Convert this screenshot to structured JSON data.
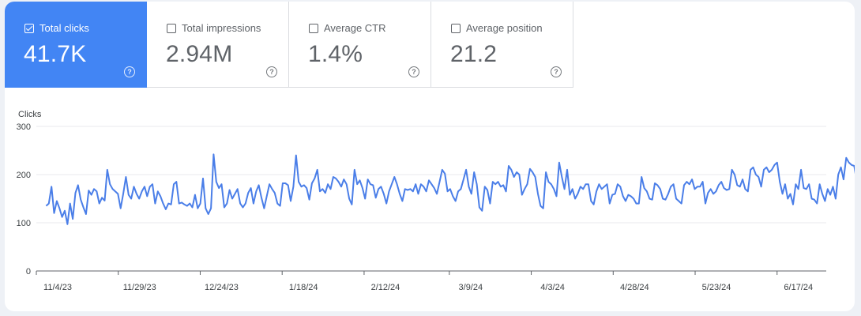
{
  "metrics": [
    {
      "label": "Total clicks",
      "value": "41.7K",
      "selected": true
    },
    {
      "label": "Total impressions",
      "value": "2.94M",
      "selected": false
    },
    {
      "label": "Average CTR",
      "value": "1.4%",
      "selected": false
    },
    {
      "label": "Average position",
      "value": "21.2",
      "selected": false
    }
  ],
  "help_glyph": "?",
  "colors": {
    "accent": "#4285f4",
    "line": "#4a7ee8",
    "grid": "#e8eaed"
  },
  "chart_data": {
    "type": "line",
    "ylabel": "Clicks",
    "ylim": [
      0,
      300
    ],
    "yticks": [
      0,
      100,
      200,
      300
    ],
    "x_start": "2023-11-04",
    "x_end": "2024-07-02",
    "xticks": [
      "11/4/23",
      "11/29/23",
      "12/24/23",
      "1/18/24",
      "2/12/24",
      "3/9/24",
      "4/3/24",
      "4/28/24",
      "5/23/24",
      "6/17/24"
    ],
    "grid": true,
    "series": [
      {
        "name": "",
        "values": [
          135,
          140,
          175,
          120,
          145,
          130,
          112,
          125,
          97,
          140,
          108,
          162,
          178,
          148,
          132,
          118,
          167,
          158,
          170,
          165,
          140,
          152,
          146,
          210,
          180,
          170,
          165,
          160,
          130,
          160,
          195,
          158,
          150,
          175,
          160,
          150,
          165,
          175,
          155,
          175,
          180,
          140,
          165,
          155,
          140,
          128,
          140,
          138,
          180,
          185,
          140,
          142,
          138,
          135,
          140,
          132,
          158,
          130,
          140,
          192,
          130,
          118,
          130,
          242,
          185,
          172,
          180,
          132,
          140,
          168,
          150,
          160,
          170,
          140,
          132,
          140,
          162,
          172,
          140,
          165,
          178,
          152,
          130,
          155,
          180,
          170,
          162,
          140,
          135,
          182,
          182,
          178,
          145,
          175,
          240,
          185,
          175,
          178,
          172,
          148,
          182,
          192,
          210,
          165,
          170,
          162,
          180,
          170,
          195,
          192,
          185,
          175,
          190,
          180,
          150,
          138,
          210,
          180,
          188,
          172,
          150,
          190,
          180,
          178,
          152,
          170,
          175,
          160,
          140,
          165,
          180,
          195,
          180,
          160,
          145,
          170,
          168,
          170,
          165,
          180,
          160,
          180,
          175,
          165,
          188,
          180,
          172,
          160,
          185,
          210,
          202,
          165,
          170,
          155,
          145,
          165,
          170,
          190,
          210,
          175,
          160,
          205,
          180,
          132,
          125,
          175,
          168,
          140,
          185,
          180,
          185,
          175,
          178,
          165,
          218,
          210,
          195,
          205,
          200,
          158,
          170,
          180,
          212,
          205,
          195,
          160,
          135,
          130,
          205,
          185,
          180,
          170,
          155,
          225,
          195,
          170,
          210,
          158,
          170,
          150,
          160,
          175,
          170,
          180,
          180,
          145,
          138,
          165,
          180,
          170,
          175,
          180,
          140,
          158,
          160,
          180,
          175,
          155,
          145,
          158,
          155,
          150,
          140,
          140,
          195,
          172,
          165,
          150,
          148,
          182,
          178,
          170,
          150,
          148,
          160,
          175,
          180,
          150,
          145,
          140,
          178,
          185,
          180,
          190,
          170,
          175,
          175,
          185,
          140,
          162,
          170,
          160,
          165,
          178,
          185,
          172,
          168,
          170,
          210,
          200,
          178,
          175,
          190,
          170,
          165,
          210,
          215,
          200,
          195,
          175,
          210,
          215,
          205,
          210,
          220,
          225,
          185,
          160,
          180,
          150,
          160,
          138,
          180,
          170,
          210,
          172,
          170,
          180,
          150,
          148,
          140,
          180,
          160,
          145,
          170,
          158,
          175,
          150,
          200,
          215,
          190,
          235,
          225,
          220,
          218,
          182,
          170,
          160,
          155,
          200,
          230,
          202,
          195,
          215,
          210,
          190,
          220,
          245,
          195,
          238,
          210,
          225,
          185,
          240,
          170,
          165,
          245,
          210,
          240
        ]
      }
    ]
  }
}
